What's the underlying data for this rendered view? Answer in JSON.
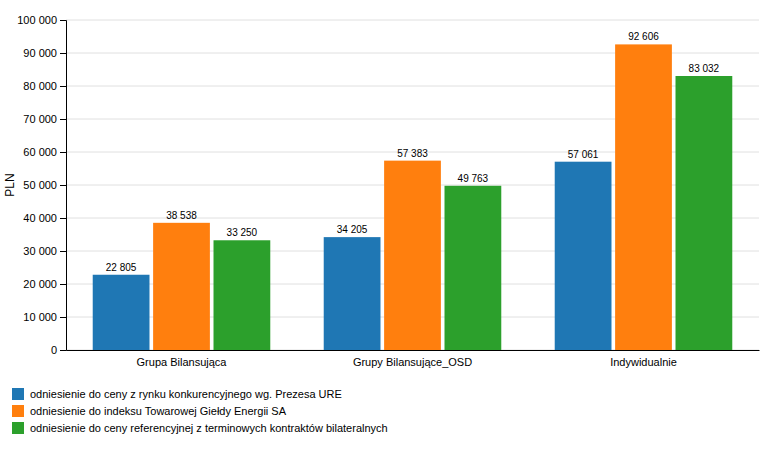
{
  "chart_data": {
    "type": "bar",
    "categories": [
      "Grupa Bilansująca",
      "Grupy Bilansujące_OSD",
      "Indywidualnie"
    ],
    "series": [
      {
        "name": "odniesienie do ceny z rynku konkurencyjnego wg. Prezesa URE",
        "values": [
          22805,
          34205,
          57061
        ],
        "value_labels": [
          "22 805",
          "34 205",
          "57 061"
        ]
      },
      {
        "name": "odniesienie do indeksu Towarowej Giełdy Energii SA",
        "values": [
          38538,
          57383,
          92606
        ],
        "value_labels": [
          "38 538",
          "57 383",
          "92 606"
        ]
      },
      {
        "name": "odniesienie do ceny referencyjnej z terminowych kontraktów bilateralnych",
        "values": [
          33250,
          49763,
          83032
        ],
        "value_labels": [
          "33 250",
          "49 763",
          "83 032"
        ]
      }
    ],
    "ylabel": "PLN",
    "ylim": [
      0,
      100000
    ],
    "yticks": [
      0,
      {
        "value": 10000,
        "label": "10 000"
      },
      {
        "value": 20000,
        "label": "20 000"
      },
      {
        "value": 30000,
        "label": "30 000"
      },
      {
        "value": 40000,
        "label": "40 000"
      },
      {
        "value": 50000,
        "label": "50 000"
      },
      {
        "value": 60000,
        "label": "60 000"
      },
      {
        "value": 70000,
        "label": "70 000"
      },
      {
        "value": 80000,
        "label": "80 000"
      },
      {
        "value": 90000,
        "label": "90 000"
      },
      {
        "value": 100000,
        "label": "100 000"
      }
    ],
    "grid": true,
    "legend": "bottom",
    "data_labels": true
  }
}
